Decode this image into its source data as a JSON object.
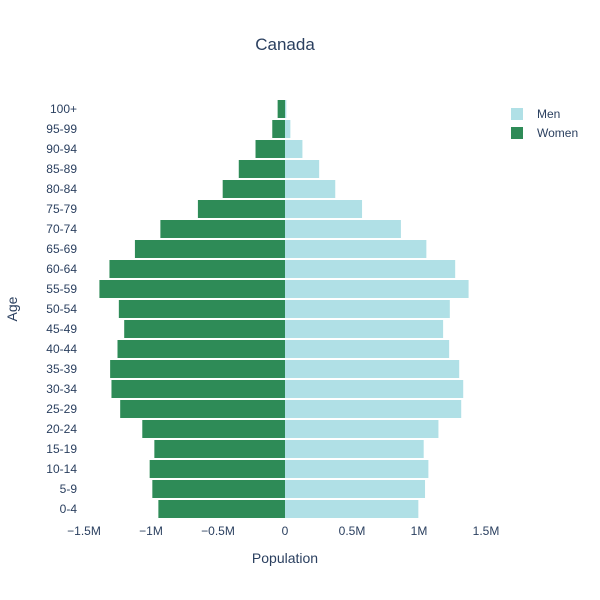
{
  "chart_data": {
    "type": "bar",
    "orientation": "horizontal",
    "title": "Canada",
    "xlabel": "Population",
    "ylabel": "Age",
    "categories": [
      "0-4",
      "5-9",
      "10-14",
      "15-19",
      "20-24",
      "25-29",
      "30-34",
      "35-39",
      "40-44",
      "45-49",
      "50-54",
      "55-59",
      "60-64",
      "65-69",
      "70-74",
      "75-79",
      "80-84",
      "85-89",
      "90-94",
      "95-99",
      "100+"
    ],
    "series": [
      {
        "name": "Men",
        "color": "#b0e0e6",
        "values": [
          995000,
          1045000,
          1070000,
          1035000,
          1145000,
          1315000,
          1330000,
          1300000,
          1225000,
          1180000,
          1230000,
          1370000,
          1270000,
          1055000,
          865000,
          575000,
          375000,
          255000,
          130000,
          40000,
          10000
        ]
      },
      {
        "name": "Women",
        "color": "#2e8b57",
        "values": [
          -945000,
          -990000,
          -1010000,
          -975000,
          -1065000,
          -1230000,
          -1295000,
          -1305000,
          -1250000,
          -1200000,
          -1240000,
          -1385000,
          -1310000,
          -1120000,
          -930000,
          -650000,
          -465000,
          -345000,
          -220000,
          -95000,
          -55000
        ]
      }
    ],
    "xlim": [
      -1500000,
      1500000
    ],
    "xticks": [
      -1500000,
      -1000000,
      -500000,
      0,
      500000,
      1000000,
      1500000
    ],
    "xtick_labels": [
      "−1.5M",
      "−1M",
      "−0.5M",
      "0",
      "0.5M",
      "1M",
      "1.5M"
    ],
    "legend_position": "top-right",
    "grid": false
  }
}
